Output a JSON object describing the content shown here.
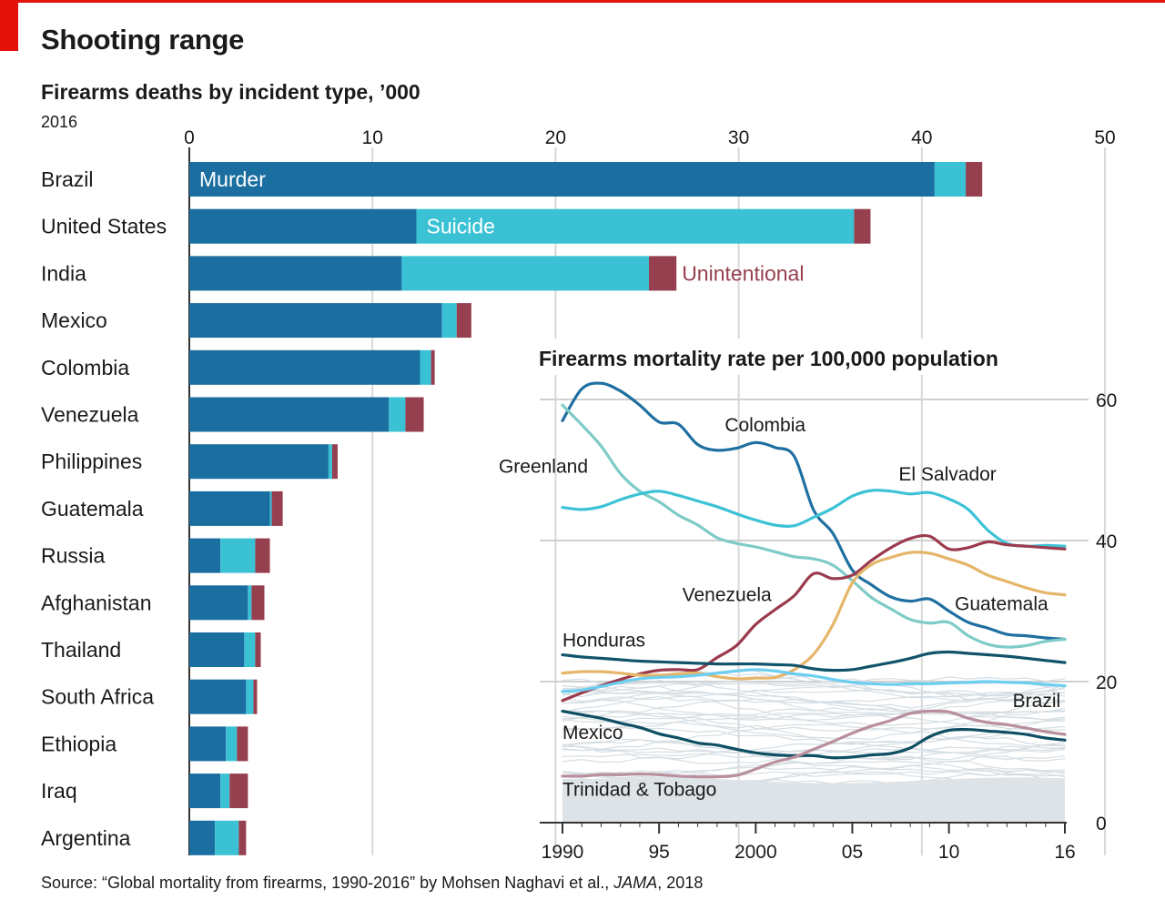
{
  "header": {
    "title": "Shooting range",
    "subtitle": "Firearms deaths by incident type, ’000",
    "year": "2016"
  },
  "source": {
    "prefix": "Source: “Global mortality from firearms, 1990-2016” by Mohsen Naghavi et al., ",
    "journal": "JAMA",
    "suffix": ", 2018"
  },
  "colors": {
    "murder": "#1a6ea0",
    "suicide": "#3ac2d4",
    "unintentional": "#963f4f",
    "colombia": "#1f6fa0",
    "greenland": "#7ecbc7",
    "el_salvador": "#3cc2d6",
    "venezuela": "#9b3b4d",
    "guatemala": "#e5b56a",
    "honduras": "#11536b",
    "brazil": "#6ccef0",
    "mexico": "#0f4f64",
    "trinidad": "#b98f9d",
    "background_lines": "#d6dee3"
  },
  "chart_data": [
    {
      "type": "bar",
      "stacked": true,
      "orientation": "horizontal",
      "title": "Firearms deaths by incident type, ’000",
      "xlim": [
        0,
        50
      ],
      "xticks": [
        0,
        10,
        20,
        30,
        40,
        50
      ],
      "categories": [
        "Brazil",
        "United States",
        "India",
        "Mexico",
        "Colombia",
        "Venezuela",
        "Philippines",
        "Guatemala",
        "Russia",
        "Afghanistan",
        "Thailand",
        "South Africa",
        "Ethiopia",
        "Iraq",
        "Argentina"
      ],
      "series": [
        {
          "name": "Murder",
          "values": [
            40.7,
            12.4,
            11.6,
            13.8,
            12.6,
            10.9,
            7.6,
            4.4,
            1.7,
            3.2,
            3.0,
            3.1,
            2.0,
            1.7,
            1.4
          ]
        },
        {
          "name": "Suicide",
          "values": [
            1.7,
            23.9,
            13.5,
            0.8,
            0.6,
            0.9,
            0.2,
            0.1,
            1.9,
            0.2,
            0.6,
            0.4,
            0.6,
            0.5,
            1.3
          ]
        },
        {
          "name": "Unintentional",
          "values": [
            0.9,
            0.9,
            1.5,
            0.8,
            0.2,
            1.0,
            0.3,
            0.6,
            0.8,
            0.7,
            0.3,
            0.2,
            0.6,
            1.0,
            0.4
          ]
        }
      ],
      "series_labels": [
        "Murder",
        "Suicide",
        "Unintentional"
      ]
    },
    {
      "type": "line",
      "title": "Firearms mortality rate per 100,000 population",
      "xlim": [
        1990,
        2016
      ],
      "ylim": [
        0,
        65
      ],
      "yticks": [
        0,
        20,
        40,
        60
      ],
      "xticks": [
        1990,
        1995,
        2000,
        2005,
        2010,
        2016
      ],
      "xtick_labels": [
        "1990",
        "95",
        "2000",
        "05",
        "10",
        "16"
      ],
      "x": [
        1990,
        1991,
        1992,
        1993,
        1994,
        1995,
        1996,
        1997,
        1998,
        1999,
        2000,
        2001,
        2002,
        2003,
        2004,
        2005,
        2006,
        2007,
        2008,
        2009,
        2010,
        2011,
        2012,
        2013,
        2014,
        2015,
        2016
      ],
      "series": [
        {
          "name": "Colombia",
          "values": [
            57.0,
            61.5,
            62.3,
            61.2,
            59.2,
            56.8,
            56.5,
            53.6,
            52.8,
            53.1,
            53.9,
            53.2,
            51.9,
            44.3,
            41.0,
            35.8,
            33.7,
            32.0,
            31.4,
            31.7,
            30.0,
            28.4,
            27.6,
            26.7,
            26.5,
            26.2,
            26.0
          ]
        },
        {
          "name": "Greenland",
          "values": [
            59.2,
            56.4,
            53.4,
            49.5,
            47.0,
            45.5,
            43.6,
            42.2,
            40.4,
            39.6,
            39.1,
            38.4,
            37.7,
            37.4,
            36.5,
            34.3,
            31.9,
            30.3,
            28.8,
            28.3,
            28.4,
            26.5,
            25.3,
            24.9,
            25.1,
            25.7,
            26.0
          ]
        },
        {
          "name": "El Salvador",
          "values": [
            44.7,
            44.4,
            44.8,
            45.8,
            46.6,
            47.0,
            46.4,
            45.6,
            44.8,
            43.8,
            42.9,
            42.2,
            42.1,
            43.3,
            44.6,
            46.3,
            47.1,
            47.0,
            46.6,
            46.8,
            45.9,
            44.4,
            41.5,
            39.6,
            39.2,
            39.3,
            39.2
          ]
        },
        {
          "name": "Venezuela",
          "values": [
            17.3,
            18.4,
            19.4,
            20.3,
            21.1,
            21.6,
            21.7,
            21.7,
            23.4,
            25.1,
            28.1,
            30.2,
            32.2,
            35.3,
            34.6,
            35.1,
            37.2,
            39.0,
            40.3,
            40.6,
            38.8,
            39.0,
            39.8,
            39.4,
            39.2,
            39.0,
            38.8
          ]
        },
        {
          "name": "Guatemala",
          "values": [
            21.2,
            21.4,
            21.4,
            21.2,
            20.9,
            20.9,
            21.1,
            21.2,
            20.7,
            20.4,
            20.5,
            20.6,
            21.7,
            23.9,
            28.1,
            34.0,
            36.6,
            37.6,
            38.3,
            38.2,
            37.4,
            36.5,
            35.1,
            34.2,
            33.3,
            32.6,
            32.3
          ]
        },
        {
          "name": "Honduras",
          "values": [
            23.8,
            23.5,
            23.3,
            23.1,
            22.9,
            22.8,
            22.7,
            22.6,
            22.5,
            22.5,
            22.5,
            22.4,
            22.3,
            21.8,
            21.6,
            21.7,
            22.2,
            22.7,
            23.3,
            24.0,
            24.2,
            24.0,
            23.8,
            23.6,
            23.3,
            23.0,
            22.7
          ]
        },
        {
          "name": "Brazil",
          "values": [
            18.6,
            18.8,
            19.3,
            19.9,
            20.4,
            20.6,
            20.7,
            20.9,
            21.2,
            21.5,
            21.7,
            21.5,
            21.1,
            20.8,
            20.3,
            19.9,
            19.7,
            19.6,
            19.7,
            19.7,
            19.8,
            19.9,
            20.0,
            19.9,
            19.8,
            19.6,
            19.4
          ]
        },
        {
          "name": "Mexico",
          "values": [
            15.8,
            15.3,
            14.8,
            14.1,
            13.5,
            12.6,
            12.0,
            11.3,
            11.0,
            10.4,
            9.9,
            9.6,
            9.5,
            9.5,
            9.2,
            9.3,
            9.6,
            9.8,
            10.6,
            12.2,
            13.1,
            13.2,
            13.0,
            12.8,
            12.5,
            12.0,
            11.7
          ]
        },
        {
          "name": "Trinidad & Tobago",
          "values": [
            6.6,
            6.6,
            6.8,
            6.8,
            6.9,
            6.8,
            6.6,
            6.5,
            6.5,
            6.7,
            7.6,
            8.6,
            9.3,
            10.4,
            11.5,
            12.7,
            13.7,
            14.5,
            15.5,
            15.8,
            15.7,
            14.8,
            14.2,
            13.9,
            13.4,
            12.9,
            12.5
          ]
        }
      ],
      "labels": [
        "Colombia",
        "Greenland",
        "El Salvador",
        "Venezuela",
        "Guatemala",
        "Honduras",
        "Brazil",
        "Mexico",
        "Trinidad & Tobago"
      ]
    }
  ]
}
